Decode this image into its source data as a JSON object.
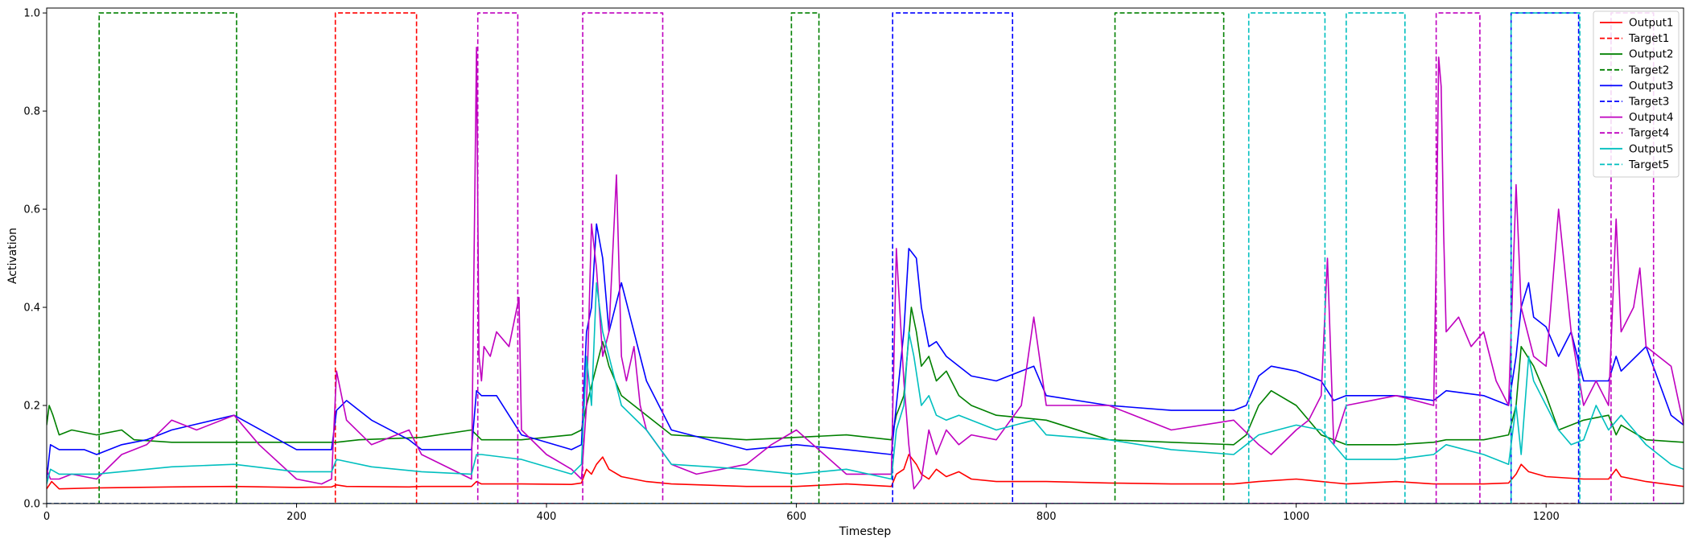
{
  "chart_data": {
    "type": "line",
    "title": "",
    "xlabel": "Timestep",
    "ylabel": "Activation",
    "xlim": [
      0,
      1310
    ],
    "ylim": [
      0,
      1.01
    ],
    "xticks": [
      0,
      200,
      400,
      600,
      800,
      1000,
      1200
    ],
    "yticks": [
      0.0,
      0.2,
      0.4,
      0.6,
      0.8,
      1.0
    ],
    "xtick_labels": [
      "0",
      "200",
      "400",
      "600",
      "800",
      "1000",
      "1200"
    ],
    "ytick_labels": [
      "0.0",
      "0.2",
      "0.4",
      "0.6",
      "0.8",
      "1.0"
    ],
    "grid": false,
    "legend_position": "top-right",
    "series": [
      {
        "name": "Output1",
        "color": "#ff0000",
        "style": "solid",
        "x": [
          0,
          4,
          10,
          40,
          100,
          150,
          200,
          228,
          232,
          240,
          290,
          300,
          340,
          344,
          348,
          380,
          420,
          428,
          432,
          436,
          440,
          445,
          450,
          460,
          480,
          500,
          560,
          600,
          640,
          676,
          680,
          686,
          690,
          696,
          700,
          706,
          712,
          720,
          730,
          740,
          760,
          800,
          850,
          900,
          950,
          970,
          1000,
          1020,
          1040,
          1080,
          1110,
          1150,
          1170,
          1176,
          1180,
          1186,
          1200,
          1230,
          1250,
          1256,
          1260,
          1280,
          1310
        ],
        "y": [
          0.03,
          0.045,
          0.03,
          0.032,
          0.034,
          0.035,
          0.033,
          0.034,
          0.038,
          0.035,
          0.034,
          0.035,
          0.035,
          0.045,
          0.04,
          0.04,
          0.039,
          0.042,
          0.07,
          0.06,
          0.08,
          0.095,
          0.07,
          0.055,
          0.045,
          0.04,
          0.035,
          0.035,
          0.04,
          0.035,
          0.06,
          0.07,
          0.1,
          0.08,
          0.06,
          0.05,
          0.07,
          0.055,
          0.065,
          0.05,
          0.045,
          0.045,
          0.042,
          0.04,
          0.04,
          0.045,
          0.05,
          0.045,
          0.04,
          0.045,
          0.04,
          0.04,
          0.042,
          0.06,
          0.08,
          0.065,
          0.055,
          0.05,
          0.05,
          0.07,
          0.055,
          0.045,
          0.035
        ]
      },
      {
        "name": "Target1",
        "color": "#ff0000",
        "style": "dashed",
        "x": [
          0,
          231,
          231,
          296,
          296,
          1310
        ],
        "y": [
          0,
          0,
          1,
          1,
          0,
          0
        ]
      },
      {
        "name": "Output2",
        "color": "#008000",
        "style": "solid",
        "x": [
          0,
          2,
          5,
          10,
          20,
          40,
          60,
          70,
          100,
          150,
          200,
          228,
          232,
          250,
          300,
          340,
          344,
          348,
          380,
          420,
          428,
          432,
          440,
          445,
          450,
          460,
          480,
          500,
          560,
          600,
          640,
          676,
          680,
          686,
          692,
          696,
          700,
          706,
          712,
          720,
          730,
          740,
          760,
          800,
          850,
          900,
          950,
          960,
          970,
          980,
          1000,
          1020,
          1040,
          1080,
          1110,
          1120,
          1150,
          1170,
          1176,
          1180,
          1190,
          1200,
          1210,
          1230,
          1250,
          1256,
          1260,
          1280,
          1310
        ],
        "y": [
          0.16,
          0.2,
          0.18,
          0.14,
          0.15,
          0.14,
          0.15,
          0.13,
          0.125,
          0.125,
          0.125,
          0.125,
          0.125,
          0.13,
          0.135,
          0.15,
          0.14,
          0.13,
          0.13,
          0.14,
          0.15,
          0.2,
          0.28,
          0.33,
          0.28,
          0.22,
          0.18,
          0.14,
          0.13,
          0.135,
          0.14,
          0.13,
          0.18,
          0.22,
          0.4,
          0.35,
          0.28,
          0.3,
          0.25,
          0.27,
          0.22,
          0.2,
          0.18,
          0.17,
          0.13,
          0.125,
          0.12,
          0.14,
          0.2,
          0.23,
          0.2,
          0.14,
          0.12,
          0.12,
          0.125,
          0.13,
          0.13,
          0.14,
          0.2,
          0.32,
          0.28,
          0.22,
          0.15,
          0.17,
          0.18,
          0.14,
          0.16,
          0.13,
          0.125
        ]
      },
      {
        "name": "Target2",
        "color": "#008000",
        "style": "dashed",
        "x": [
          0,
          42,
          42,
          152,
          152,
          596,
          596,
          618,
          618,
          855,
          855,
          942,
          942,
          1310
        ],
        "y": [
          0,
          0,
          1,
          1,
          0,
          0,
          1,
          1,
          0,
          0,
          1,
          1,
          0,
          0
        ]
      },
      {
        "name": "Output3",
        "color": "#0000ff",
        "style": "solid",
        "x": [
          0,
          3,
          10,
          30,
          40,
          60,
          80,
          100,
          150,
          200,
          228,
          232,
          240,
          260,
          290,
          300,
          340,
          344,
          348,
          360,
          380,
          420,
          428,
          432,
          436,
          440,
          445,
          450,
          460,
          480,
          500,
          560,
          600,
          640,
          676,
          680,
          686,
          690,
          696,
          700,
          706,
          712,
          720,
          730,
          740,
          760,
          790,
          800,
          850,
          900,
          950,
          960,
          970,
          980,
          1000,
          1020,
          1030,
          1040,
          1080,
          1110,
          1120,
          1150,
          1170,
          1176,
          1180,
          1186,
          1190,
          1200,
          1210,
          1220,
          1230,
          1250,
          1256,
          1260,
          1280,
          1300,
          1310
        ],
        "y": [
          0.05,
          0.12,
          0.11,
          0.11,
          0.1,
          0.12,
          0.13,
          0.15,
          0.18,
          0.11,
          0.11,
          0.19,
          0.21,
          0.17,
          0.13,
          0.11,
          0.11,
          0.23,
          0.22,
          0.22,
          0.14,
          0.11,
          0.12,
          0.35,
          0.4,
          0.57,
          0.5,
          0.35,
          0.45,
          0.25,
          0.15,
          0.11,
          0.12,
          0.11,
          0.1,
          0.2,
          0.35,
          0.52,
          0.5,
          0.4,
          0.32,
          0.33,
          0.3,
          0.28,
          0.26,
          0.25,
          0.28,
          0.22,
          0.2,
          0.19,
          0.19,
          0.2,
          0.26,
          0.28,
          0.27,
          0.25,
          0.21,
          0.22,
          0.22,
          0.21,
          0.23,
          0.22,
          0.2,
          0.3,
          0.4,
          0.45,
          0.38,
          0.36,
          0.3,
          0.35,
          0.25,
          0.25,
          0.3,
          0.27,
          0.32,
          0.18,
          0.16
        ]
      },
      {
        "name": "Target3",
        "color": "#0000ff",
        "style": "dashed",
        "x": [
          0,
          677,
          677,
          773,
          773,
          1172,
          1172,
          1226,
          1226,
          1310
        ],
        "y": [
          0,
          0,
          1,
          1,
          0,
          0,
          1,
          1,
          0,
          0
        ]
      },
      {
        "name": "Output4",
        "color": "#bf00bf",
        "style": "solid",
        "x": [
          0,
          3,
          10,
          20,
          40,
          60,
          80,
          100,
          120,
          150,
          170,
          200,
          220,
          228,
          232,
          240,
          260,
          290,
          300,
          340,
          344,
          346,
          348,
          350,
          355,
          360,
          370,
          378,
          380,
          400,
          420,
          428,
          432,
          436,
          440,
          445,
          450,
          456,
          460,
          464,
          470,
          475,
          480,
          500,
          520,
          560,
          580,
          600,
          640,
          676,
          680,
          686,
          690,
          694,
          700,
          706,
          712,
          720,
          730,
          740,
          760,
          780,
          790,
          800,
          850,
          900,
          950,
          970,
          980,
          1000,
          1010,
          1020,
          1025,
          1030,
          1040,
          1080,
          1110,
          1112,
          1114,
          1116,
          1118,
          1120,
          1130,
          1140,
          1150,
          1160,
          1170,
          1174,
          1176,
          1180,
          1190,
          1200,
          1210,
          1220,
          1230,
          1240,
          1250,
          1256,
          1260,
          1270,
          1275,
          1280,
          1290,
          1300,
          1310
        ],
        "y": [
          0.07,
          0.05,
          0.05,
          0.06,
          0.05,
          0.1,
          0.12,
          0.17,
          0.15,
          0.18,
          0.12,
          0.05,
          0.04,
          0.05,
          0.27,
          0.17,
          0.12,
          0.15,
          0.1,
          0.05,
          0.93,
          0.3,
          0.25,
          0.32,
          0.3,
          0.35,
          0.32,
          0.42,
          0.15,
          0.1,
          0.07,
          0.05,
          0.2,
          0.57,
          0.48,
          0.3,
          0.35,
          0.67,
          0.3,
          0.25,
          0.32,
          0.2,
          0.15,
          0.08,
          0.06,
          0.08,
          0.12,
          0.15,
          0.06,
          0.06,
          0.52,
          0.25,
          0.12,
          0.03,
          0.05,
          0.15,
          0.1,
          0.15,
          0.12,
          0.14,
          0.13,
          0.2,
          0.38,
          0.2,
          0.2,
          0.15,
          0.17,
          0.12,
          0.1,
          0.15,
          0.17,
          0.22,
          0.5,
          0.12,
          0.2,
          0.22,
          0.2,
          0.5,
          0.91,
          0.85,
          0.55,
          0.35,
          0.38,
          0.32,
          0.35,
          0.25,
          0.2,
          0.5,
          0.65,
          0.4,
          0.3,
          0.28,
          0.6,
          0.35,
          0.2,
          0.25,
          0.2,
          0.58,
          0.35,
          0.4,
          0.48,
          0.32,
          0.3,
          0.28,
          0.16
        ]
      },
      {
        "name": "Target4",
        "color": "#bf00bf",
        "style": "dashed",
        "x": [
          0,
          345,
          345,
          377,
          377,
          429,
          429,
          493,
          493,
          1112,
          1112,
          1147,
          1147,
          1252,
          1252,
          1286,
          1286,
          1310
        ],
        "y": [
          0,
          0,
          1,
          1,
          0,
          0,
          1,
          1,
          0,
          0,
          1,
          1,
          0,
          0,
          1,
          1,
          0,
          0
        ]
      },
      {
        "name": "Output5",
        "color": "#00bfbf",
        "style": "solid",
        "x": [
          0,
          3,
          10,
          40,
          100,
          150,
          200,
          228,
          232,
          260,
          300,
          340,
          344,
          348,
          380,
          420,
          428,
          432,
          436,
          440,
          445,
          450,
          460,
          480,
          500,
          560,
          600,
          640,
          676,
          680,
          686,
          690,
          694,
          700,
          706,
          712,
          720,
          730,
          760,
          790,
          800,
          850,
          900,
          950,
          970,
          1000,
          1020,
          1040,
          1080,
          1110,
          1120,
          1150,
          1170,
          1176,
          1180,
          1186,
          1190,
          1200,
          1210,
          1220,
          1230,
          1240,
          1250,
          1260,
          1280,
          1300,
          1310
        ],
        "y": [
          0.04,
          0.07,
          0.06,
          0.06,
          0.075,
          0.08,
          0.065,
          0.065,
          0.09,
          0.075,
          0.065,
          0.06,
          0.1,
          0.1,
          0.09,
          0.06,
          0.08,
          0.3,
          0.2,
          0.45,
          0.35,
          0.3,
          0.2,
          0.15,
          0.08,
          0.07,
          0.06,
          0.07,
          0.05,
          0.15,
          0.2,
          0.35,
          0.3,
          0.2,
          0.22,
          0.18,
          0.17,
          0.18,
          0.15,
          0.17,
          0.14,
          0.13,
          0.11,
          0.1,
          0.14,
          0.16,
          0.15,
          0.09,
          0.09,
          0.1,
          0.12,
          0.1,
          0.08,
          0.2,
          0.1,
          0.3,
          0.25,
          0.2,
          0.15,
          0.12,
          0.13,
          0.2,
          0.15,
          0.18,
          0.12,
          0.08,
          0.07
        ]
      },
      {
        "name": "Target5",
        "color": "#00bfbf",
        "style": "dashed",
        "x": [
          0,
          962,
          962,
          1023,
          1023,
          1040,
          1040,
          1087,
          1087,
          1172,
          1172,
          1227,
          1227,
          1310
        ],
        "y": [
          0,
          0,
          1,
          1,
          0,
          0,
          1,
          1,
          0,
          0,
          1,
          1,
          0,
          0
        ]
      }
    ]
  }
}
